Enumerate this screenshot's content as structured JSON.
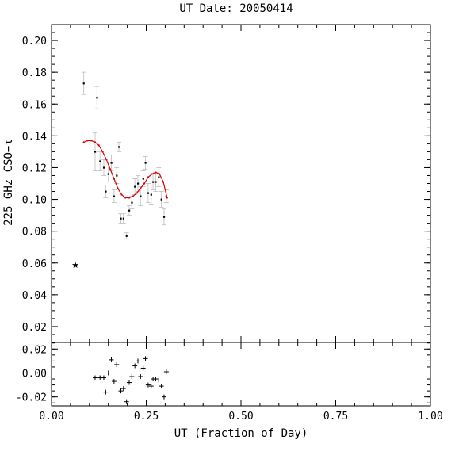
{
  "chart_data": [
    {
      "type": "scatter",
      "panel": "main",
      "title": "UT Date: 20050414",
      "ylabel": "225 GHz CSO−τ",
      "xlim": [
        0.0,
        1.0
      ],
      "ylim": [
        0.01,
        0.21
      ],
      "yticks": [
        0.02,
        0.04,
        0.06,
        0.08,
        0.1,
        0.12,
        0.14,
        0.16,
        0.18,
        0.2
      ],
      "ytick_labels": [
        "0.02",
        "0.04",
        "0.06",
        "0.08",
        "0.10",
        "0.12",
        "0.14",
        "0.16",
        "0.18",
        "0.20"
      ],
      "points": [
        {
          "x": 0.063,
          "y": 0.059,
          "err": 0.0,
          "marker": "star"
        },
        {
          "x": 0.085,
          "y": 0.173,
          "err": 0.007
        },
        {
          "x": 0.115,
          "y": 0.13,
          "err": 0.012
        },
        {
          "x": 0.12,
          "y": 0.164,
          "err": 0.007
        },
        {
          "x": 0.128,
          "y": 0.124,
          "err": 0.006
        },
        {
          "x": 0.138,
          "y": 0.12,
          "err": 0.005
        },
        {
          "x": 0.143,
          "y": 0.105,
          "err": 0.004
        },
        {
          "x": 0.15,
          "y": 0.116,
          "err": 0.005
        },
        {
          "x": 0.158,
          "y": 0.123,
          "err": 0.005
        },
        {
          "x": 0.165,
          "y": 0.102,
          "err": 0.004
        },
        {
          "x": 0.172,
          "y": 0.115,
          "err": 0.005
        },
        {
          "x": 0.178,
          "y": 0.133,
          "err": 0.003
        },
        {
          "x": 0.183,
          "y": 0.088,
          "err": 0.003
        },
        {
          "x": 0.19,
          "y": 0.088,
          "err": 0.003
        },
        {
          "x": 0.198,
          "y": 0.077,
          "err": 0.002
        },
        {
          "x": 0.205,
          "y": 0.093,
          "err": 0.003
        },
        {
          "x": 0.212,
          "y": 0.098,
          "err": 0.004
        },
        {
          "x": 0.22,
          "y": 0.108,
          "err": 0.005
        },
        {
          "x": 0.228,
          "y": 0.11,
          "err": 0.005
        },
        {
          "x": 0.235,
          "y": 0.102,
          "err": 0.006
        },
        {
          "x": 0.242,
          "y": 0.113,
          "err": 0.005
        },
        {
          "x": 0.248,
          "y": 0.123,
          "err": 0.004
        },
        {
          "x": 0.255,
          "y": 0.104,
          "err": 0.006
        },
        {
          "x": 0.263,
          "y": 0.103,
          "err": 0.006
        },
        {
          "x": 0.268,
          "y": 0.111,
          "err": 0.005
        },
        {
          "x": 0.275,
          "y": 0.111,
          "err": 0.006
        },
        {
          "x": 0.283,
          "y": 0.114,
          "err": 0.006
        },
        {
          "x": 0.29,
          "y": 0.1,
          "err": 0.005
        },
        {
          "x": 0.297,
          "y": 0.089,
          "err": 0.005
        },
        {
          "x": 0.303,
          "y": 0.102,
          "err": 0.004
        }
      ],
      "fit": {
        "color": "#e00000",
        "x": [
          0.085,
          0.095,
          0.105,
          0.115,
          0.125,
          0.135,
          0.145,
          0.155,
          0.165,
          0.175,
          0.185,
          0.195,
          0.205,
          0.215,
          0.225,
          0.235,
          0.245,
          0.255,
          0.265,
          0.275,
          0.285,
          0.295,
          0.305
        ],
        "y": [
          0.136,
          0.137,
          0.137,
          0.136,
          0.134,
          0.13,
          0.125,
          0.119,
          0.113,
          0.107,
          0.103,
          0.101,
          0.101,
          0.102,
          0.104,
          0.107,
          0.11,
          0.114,
          0.116,
          0.117,
          0.116,
          0.111,
          0.101
        ]
      },
      "errorbar_color": "#c8c8c8"
    },
    {
      "type": "scatter",
      "panel": "residuals",
      "xlabel": "UT (Fraction of Day)",
      "xlim": [
        0.0,
        1.0
      ],
      "ylim": [
        -0.0275,
        0.0255
      ],
      "yticks": [
        -0.02,
        0.0,
        0.02
      ],
      "ytick_labels": [
        "-0.02",
        "0.00",
        "0.02"
      ],
      "xticks": [
        0.0,
        0.25,
        0.5,
        0.75,
        1.0
      ],
      "xtick_labels": [
        "0.00",
        "0.25",
        "0.50",
        "0.75",
        "1.00"
      ],
      "zero_line_color": "#e00000",
      "points": [
        {
          "x": 0.115,
          "y": -0.004
        },
        {
          "x": 0.128,
          "y": -0.004
        },
        {
          "x": 0.138,
          "y": -0.004
        },
        {
          "x": 0.143,
          "y": -0.016
        },
        {
          "x": 0.15,
          "y": 0.0
        },
        {
          "x": 0.158,
          "y": 0.011
        },
        {
          "x": 0.165,
          "y": -0.007
        },
        {
          "x": 0.172,
          "y": 0.007
        },
        {
          "x": 0.183,
          "y": -0.015
        },
        {
          "x": 0.19,
          "y": -0.013
        },
        {
          "x": 0.198,
          "y": -0.024
        },
        {
          "x": 0.205,
          "y": -0.008
        },
        {
          "x": 0.212,
          "y": -0.003
        },
        {
          "x": 0.22,
          "y": 0.006
        },
        {
          "x": 0.228,
          "y": 0.01
        },
        {
          "x": 0.235,
          "y": -0.003
        },
        {
          "x": 0.242,
          "y": 0.004
        },
        {
          "x": 0.248,
          "y": 0.012
        },
        {
          "x": 0.255,
          "y": -0.01
        },
        {
          "x": 0.263,
          "y": -0.011
        },
        {
          "x": 0.268,
          "y": -0.005
        },
        {
          "x": 0.275,
          "y": -0.005
        },
        {
          "x": 0.283,
          "y": -0.006
        },
        {
          "x": 0.29,
          "y": -0.011
        },
        {
          "x": 0.297,
          "y": -0.02
        },
        {
          "x": 0.303,
          "y": 0.001
        }
      ]
    }
  ]
}
